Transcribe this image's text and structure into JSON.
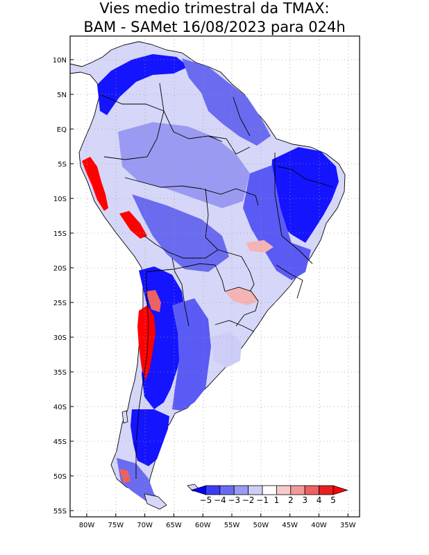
{
  "title_line1": "Vies medio trimestral da TMAX:",
  "title_line2": "BAM - SAMet 16/08/2023  para 024h",
  "lat_labels": [
    "10N",
    "5N",
    "EQ",
    "5S",
    "10S",
    "15S",
    "20S",
    "25S",
    "30S",
    "35S",
    "40S",
    "45S",
    "50S",
    "55S"
  ],
  "lon_labels": [
    "80W",
    "75W",
    "70W",
    "65W",
    "60W",
    "55W",
    "50W",
    "45W",
    "40W",
    "35W"
  ],
  "colorbar": {
    "labels": [
      "-5",
      "-4",
      "-3",
      "-2",
      "-1",
      "1",
      "2",
      "3",
      "4",
      "5"
    ],
    "colors": [
      "#0000ff",
      "#3c3cf5",
      "#6b6bf0",
      "#9a9af2",
      "#cdcdf7",
      "#ffffff",
      "#f7caca",
      "#f29a9a",
      "#ee6161",
      "#e62020",
      "#ff0000"
    ],
    "under_color": "#0000ff",
    "over_color": "#ff0000"
  },
  "colors": {
    "strong_blue": "#1414ff",
    "mid_blue": "#5a5af5",
    "light_blue": "#a0a0f4",
    "pale_blue": "#d6d6f8",
    "red": "#ff0000",
    "pale_red": "#f5b4b4",
    "border": "#000000",
    "grid": "#9a9a9a"
  }
}
